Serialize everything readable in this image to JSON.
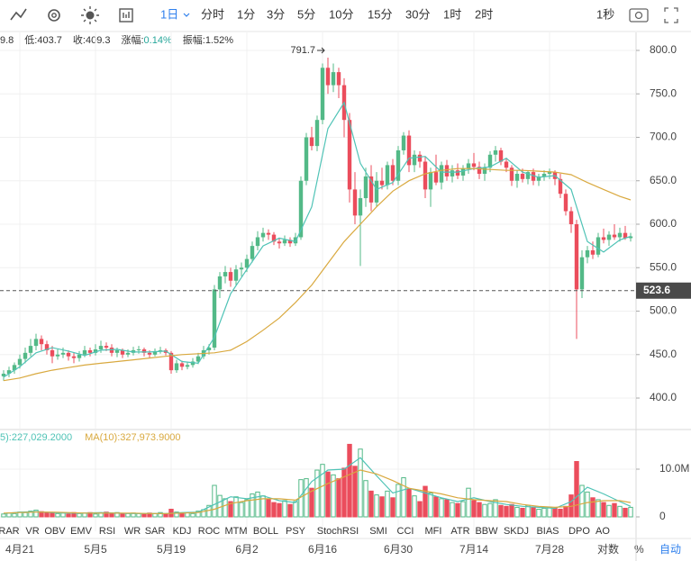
{
  "toolbar": {
    "selected": "1日",
    "intervals": [
      "分时",
      "1分",
      "3分",
      "5分",
      "10分",
      "15分",
      "30分",
      "1时",
      "2时"
    ],
    "right": "1秒"
  },
  "info": [
    {
      "value": "9.8"
    },
    {
      "label": "低:",
      "value": "403.7"
    },
    {
      "label": "收:",
      "value": "409.3"
    },
    {
      "label": "涨幅:",
      "value": "0.14%"
    },
    {
      "label": "振幅:",
      "value": "1.52%"
    }
  ],
  "indicators": [
    "RAR",
    "VR",
    "OBV",
    "EMV",
    "RSI",
    "WR",
    "SAR",
    "KDJ",
    "ROC",
    "MTM",
    "BOLL",
    "PSY",
    "StochRSI",
    "SMI",
    "CCI",
    "MFI",
    "ATR",
    "BBW",
    "SKDJ",
    "BIAS",
    "DPO",
    "AO"
  ],
  "footer": {
    "log": "对数",
    "percent": "%",
    "auto": "自动"
  },
  "chart_data": {
    "type": "candlestick",
    "categories": [
      null,
      null,
      null,
      "4月21",
      null,
      null,
      null,
      null,
      null,
      null,
      null,
      null,
      null,
      null,
      null,
      null,
      null,
      "5月5",
      null,
      null,
      null,
      null,
      null,
      null,
      null,
      null,
      null,
      null,
      null,
      null,
      null,
      "5月19",
      null,
      null,
      null,
      null,
      null,
      null,
      null,
      null,
      null,
      null,
      null,
      null,
      null,
      "6月2",
      null,
      null,
      null,
      null,
      null,
      null,
      null,
      null,
      null,
      null,
      null,
      null,
      null,
      "6月16",
      null,
      null,
      null,
      null,
      null,
      null,
      null,
      null,
      null,
      null,
      null,
      null,
      null,
      "6月30",
      null,
      null,
      null,
      null,
      null,
      null,
      null,
      null,
      null,
      null,
      null,
      null,
      null,
      "7月14",
      null,
      null,
      null,
      null,
      null,
      null,
      null,
      null,
      null,
      null,
      null,
      null,
      null,
      "7月28",
      null,
      null,
      null,
      null,
      null,
      null,
      null,
      null,
      null,
      null,
      null,
      null,
      null,
      null,
      null
    ],
    "ohlc": [
      [
        425,
        432,
        420,
        428
      ],
      [
        428,
        436,
        424,
        432
      ],
      [
        432,
        441,
        428,
        438
      ],
      [
        438,
        450,
        434,
        445
      ],
      [
        445,
        458,
        440,
        452
      ],
      [
        452,
        468,
        448,
        460
      ],
      [
        460,
        474,
        455,
        468
      ],
      [
        468,
        472,
        455,
        462
      ],
      [
        462,
        466,
        450,
        455
      ],
      [
        455,
        460,
        440,
        448
      ],
      [
        448,
        456,
        444,
        450
      ],
      [
        450,
        458,
        446,
        452
      ],
      [
        452,
        455,
        443,
        448
      ],
      [
        448,
        452,
        440,
        446
      ],
      [
        446,
        454,
        442,
        450
      ],
      [
        450,
        460,
        447,
        455
      ],
      [
        455,
        458,
        448,
        452
      ],
      [
        452,
        462,
        449,
        456
      ],
      [
        456,
        466,
        452,
        460
      ],
      [
        460,
        464,
        454,
        458
      ],
      [
        458,
        462,
        448,
        452
      ],
      [
        452,
        458,
        447,
        455
      ],
      [
        455,
        457,
        446,
        450
      ],
      [
        450,
        456,
        447,
        452
      ],
      [
        452,
        459,
        449,
        455
      ],
      [
        455,
        460,
        451,
        456
      ],
      [
        456,
        458,
        448,
        452
      ],
      [
        452,
        455,
        446,
        450
      ],
      [
        450,
        457,
        448,
        454
      ],
      [
        454,
        459,
        451,
        455
      ],
      [
        455,
        457,
        449,
        452
      ],
      [
        452,
        454,
        428,
        432
      ],
      [
        432,
        444,
        429,
        440
      ],
      [
        440,
        443,
        432,
        436
      ],
      [
        436,
        442,
        433,
        438
      ],
      [
        438,
        446,
        435,
        442
      ],
      [
        442,
        452,
        439,
        448
      ],
      [
        448,
        460,
        445,
        455
      ],
      [
        455,
        462,
        450,
        458
      ],
      [
        458,
        530,
        455,
        525
      ],
      [
        525,
        545,
        515,
        540
      ],
      [
        540,
        552,
        532,
        545
      ],
      [
        545,
        550,
        528,
        535
      ],
      [
        535,
        553,
        530,
        548
      ],
      [
        548,
        556,
        540,
        550
      ],
      [
        550,
        565,
        545,
        560
      ],
      [
        560,
        580,
        556,
        575
      ],
      [
        575,
        592,
        570,
        585
      ],
      [
        585,
        596,
        580,
        590
      ],
      [
        590,
        594,
        582,
        588
      ],
      [
        588,
        591,
        576,
        580
      ],
      [
        580,
        584,
        572,
        578
      ],
      [
        578,
        587,
        575,
        582
      ],
      [
        582,
        585,
        574,
        578
      ],
      [
        578,
        590,
        575,
        585
      ],
      [
        585,
        655,
        582,
        650
      ],
      [
        650,
        705,
        645,
        700
      ],
      [
        700,
        712,
        685,
        690
      ],
      [
        690,
        725,
        684,
        720
      ],
      [
        720,
        785,
        715,
        780
      ],
      [
        780,
        791.7,
        750,
        760
      ],
      [
        760,
        785,
        752,
        775
      ],
      [
        775,
        780,
        745,
        760
      ],
      [
        760,
        768,
        700,
        720
      ],
      [
        720,
        728,
        625,
        640
      ],
      [
        640,
        660,
        600,
        610
      ],
      [
        610,
        640,
        552,
        630
      ],
      [
        630,
        665,
        620,
        655
      ],
      [
        655,
        668,
        615,
        625
      ],
      [
        625,
        660,
        620,
        650
      ],
      [
        650,
        665,
        640,
        645
      ],
      [
        645,
        672,
        640,
        668
      ],
      [
        668,
        675,
        645,
        650
      ],
      [
        650,
        690,
        645,
        685
      ],
      [
        685,
        706,
        680,
        702
      ],
      [
        702,
        708,
        660,
        668
      ],
      [
        668,
        685,
        660,
        680
      ],
      [
        680,
        684,
        665,
        672
      ],
      [
        672,
        678,
        630,
        640
      ],
      [
        640,
        665,
        620,
        660
      ],
      [
        660,
        680,
        645,
        648
      ],
      [
        648,
        672,
        640,
        668
      ],
      [
        668,
        674,
        650,
        655
      ],
      [
        655,
        668,
        648,
        662
      ],
      [
        662,
        670,
        652,
        656
      ],
      [
        656,
        668,
        650,
        664
      ],
      [
        664,
        675,
        658,
        670
      ],
      [
        670,
        682,
        662,
        666
      ],
      [
        666,
        672,
        652,
        658
      ],
      [
        658,
        670,
        650,
        665
      ],
      [
        665,
        684,
        660,
        680
      ],
      [
        680,
        690,
        672,
        685
      ],
      [
        685,
        688,
        668,
        672
      ],
      [
        672,
        676,
        660,
        665
      ],
      [
        665,
        668,
        644,
        650
      ],
      [
        650,
        662,
        642,
        658
      ],
      [
        658,
        664,
        648,
        652
      ],
      [
        652,
        662,
        646,
        660
      ],
      [
        660,
        664,
        645,
        650
      ],
      [
        650,
        658,
        644,
        655
      ],
      [
        655,
        662,
        650,
        658
      ],
      [
        658,
        664,
        652,
        660
      ],
      [
        660,
        662,
        645,
        652
      ],
      [
        652,
        658,
        630,
        635
      ],
      [
        635,
        640,
        610,
        615
      ],
      [
        615,
        620,
        590,
        600
      ],
      [
        600,
        605,
        468,
        525
      ],
      [
        525,
        570,
        515,
        562
      ],
      [
        562,
        575,
        555,
        570
      ],
      [
        570,
        580,
        560,
        565
      ],
      [
        565,
        590,
        562,
        585
      ],
      [
        585,
        595,
        578,
        582
      ],
      [
        582,
        592,
        575,
        588
      ],
      [
        588,
        600,
        582,
        585
      ],
      [
        585,
        596,
        580,
        590
      ],
      [
        590,
        598,
        582,
        584
      ],
      [
        584,
        590,
        580,
        586
      ]
    ],
    "colors": {
      "up": "#53b987",
      "down": "#eb4d5c"
    },
    "ylim": [
      364.8,
      820.7
    ],
    "yticks": [
      {
        "value": 400,
        "label": "400.0"
      },
      {
        "value": 450,
        "label": "450.0"
      },
      {
        "value": 500,
        "label": "500.0"
      },
      {
        "value": 550,
        "label": "550.0"
      },
      {
        "value": 600,
        "label": "600.0"
      },
      {
        "value": 650,
        "label": "650.0"
      },
      {
        "value": 700,
        "label": "700.0"
      },
      {
        "value": 750,
        "label": "750.0"
      },
      {
        "value": 800,
        "label": "800.0"
      }
    ],
    "grid": true,
    "last_price": 523.6,
    "ma_series": [
      {
        "color": "#4fc3b6",
        "x": [
          0,
          3,
          6,
          9,
          12,
          15,
          18,
          21,
          24,
          27,
          30,
          33,
          36,
          39,
          42,
          45,
          48,
          51,
          54,
          57,
          60,
          63,
          66,
          69,
          72,
          75,
          78,
          81,
          84,
          87,
          90,
          93,
          96,
          99,
          102,
          105,
          108,
          111,
          114,
          116
        ],
        "values": [
          424,
          436,
          452,
          458,
          454,
          449,
          455,
          456,
          453,
          453,
          454,
          442,
          440,
          470,
          520,
          548,
          575,
          584,
          580,
          620,
          710,
          740,
          670,
          640,
          648,
          676,
          678,
          660,
          660,
          664,
          666,
          676,
          660,
          654,
          656,
          640,
          580,
          568,
          582,
          586
        ]
      },
      {
        "color": "#d9a93f",
        "x": [
          0,
          3,
          6,
          9,
          12,
          15,
          18,
          21,
          24,
          27,
          30,
          33,
          36,
          39,
          42,
          45,
          48,
          51,
          54,
          57,
          60,
          63,
          66,
          69,
          72,
          75,
          78,
          81,
          84,
          87,
          90,
          93,
          96,
          99,
          102,
          105,
          108,
          111,
          114,
          116
        ],
        "values": [
          420,
          423,
          428,
          432,
          435,
          438,
          440,
          442,
          444,
          446,
          448,
          450,
          451,
          452,
          455,
          465,
          478,
          492,
          510,
          530,
          555,
          580,
          600,
          620,
          638,
          650,
          658,
          662,
          664,
          664,
          663,
          662,
          662,
          661,
          660,
          657,
          648,
          640,
          632,
          628
        ]
      }
    ],
    "volume": {
      "values": [
        0.6,
        0.8,
        0.7,
        1.0,
        0.9,
        1.2,
        1.4,
        1.1,
        0.9,
        0.8,
        0.7,
        0.8,
        0.6,
        0.9,
        0.7,
        0.8,
        0.9,
        0.6,
        0.8,
        1.0,
        0.7,
        0.9,
        0.6,
        0.7,
        0.8,
        0.7,
        0.6,
        0.8,
        0.7,
        0.9,
        0.6,
        1.6,
        1.0,
        0.8,
        0.9,
        0.7,
        1.2,
        1.5,
        2.4,
        6.6,
        4.5,
        3.8,
        3.2,
        4.2,
        3.0,
        3.6,
        4.8,
        5.2,
        4.4,
        3.6,
        3.0,
        2.8,
        3.4,
        2.6,
        3.2,
        7.8,
        8.0,
        6.0,
        9.8,
        11.0,
        9.4,
        8.8,
        8.0,
        10.2,
        15.2,
        10.6,
        14.2,
        7.6,
        5.4,
        4.6,
        4.2,
        5.4,
        4.0,
        6.8,
        8.2,
        5.8,
        4.4,
        3.2,
        6.4,
        5.0,
        4.2,
        3.8,
        3.6,
        3.0,
        2.8,
        3.2,
        6.0,
        3.4,
        3.0,
        2.6,
        2.8,
        3.6,
        2.4,
        2.2,
        2.6,
        2.0,
        1.8,
        2.4,
        2.0,
        1.6,
        1.8,
        2.0,
        1.8,
        1.6,
        2.2,
        4.6,
        11.6,
        6.6,
        5.2,
        4.0,
        3.6,
        3.0,
        2.4,
        2.8,
        2.2,
        1.8,
        2.0
      ],
      "ylim": [
        -3.02,
        18.11
      ],
      "yticks": [
        0,
        {
          "value": 10,
          "label": "10.0M"
        }
      ],
      "series": [
        {
          "name": "5):227,029.2000",
          "color": "#4fc3b6",
          "x": [
            0,
            3,
            6,
            9,
            12,
            15,
            18,
            21,
            24,
            27,
            30,
            33,
            36,
            39,
            42,
            45,
            48,
            51,
            54,
            57,
            60,
            63,
            66,
            69,
            72,
            75,
            78,
            81,
            84,
            87,
            90,
            93,
            96,
            99,
            102,
            105,
            108,
            111,
            114,
            116
          ],
          "values": [
            0.7,
            1.0,
            1.1,
            0.9,
            0.8,
            0.8,
            0.9,
            0.8,
            0.7,
            0.7,
            0.7,
            0.9,
            1.0,
            2.6,
            4.2,
            3.8,
            4.4,
            3.4,
            3.0,
            7.4,
            9.8,
            10.0,
            12.4,
            8.6,
            5.0,
            6.0,
            5.0,
            4.0,
            3.2,
            4.0,
            3.2,
            2.6,
            2.2,
            2.0,
            1.8,
            3.2,
            6.2,
            4.8,
            3.2,
            2.2
          ]
        },
        {
          "name": "MA(10):327,973.9000",
          "color": "#d9a93f",
          "x": [
            0,
            3,
            6,
            9,
            12,
            15,
            18,
            21,
            24,
            27,
            30,
            33,
            36,
            39,
            42,
            45,
            48,
            51,
            54,
            57,
            60,
            63,
            66,
            69,
            72,
            75,
            78,
            81,
            84,
            87,
            90,
            93,
            96,
            99,
            102,
            105,
            108,
            111,
            114,
            116
          ],
          "values": [
            0.8,
            0.9,
            1.0,
            1.0,
            0.9,
            0.8,
            0.8,
            0.8,
            0.8,
            0.7,
            0.7,
            0.8,
            0.9,
            1.6,
            2.8,
            3.4,
            3.8,
            3.8,
            3.5,
            5.4,
            7.0,
            8.4,
            9.8,
            9.0,
            7.6,
            6.0,
            5.4,
            4.8,
            4.0,
            3.6,
            3.4,
            3.2,
            2.6,
            2.2,
            2.0,
            2.2,
            3.0,
            3.4,
            3.4,
            3.0
          ]
        }
      ]
    }
  }
}
